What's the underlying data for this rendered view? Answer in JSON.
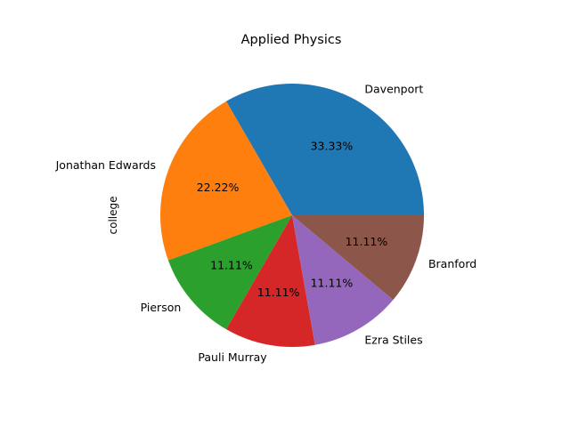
{
  "chart_data": {
    "type": "pie",
    "title": "Applied Physics",
    "ylabel": "college",
    "categories": [
      "Davenport",
      "Jonathan Edwards",
      "Pierson",
      "Pauli Murray",
      "Ezra Stiles",
      "Branford"
    ],
    "values": [
      3,
      2,
      1,
      1,
      1,
      1
    ],
    "percent_labels": [
      "33.33%",
      "22.22%",
      "11.11%",
      "11.11%",
      "11.11%",
      "11.11%"
    ],
    "colors": [
      "#1f77b4",
      "#ff7f0e",
      "#2ca02c",
      "#d62728",
      "#9467bd",
      "#8c564b"
    ],
    "start_angle_deg": 0,
    "direction": "counterclockwise",
    "legend": false
  }
}
